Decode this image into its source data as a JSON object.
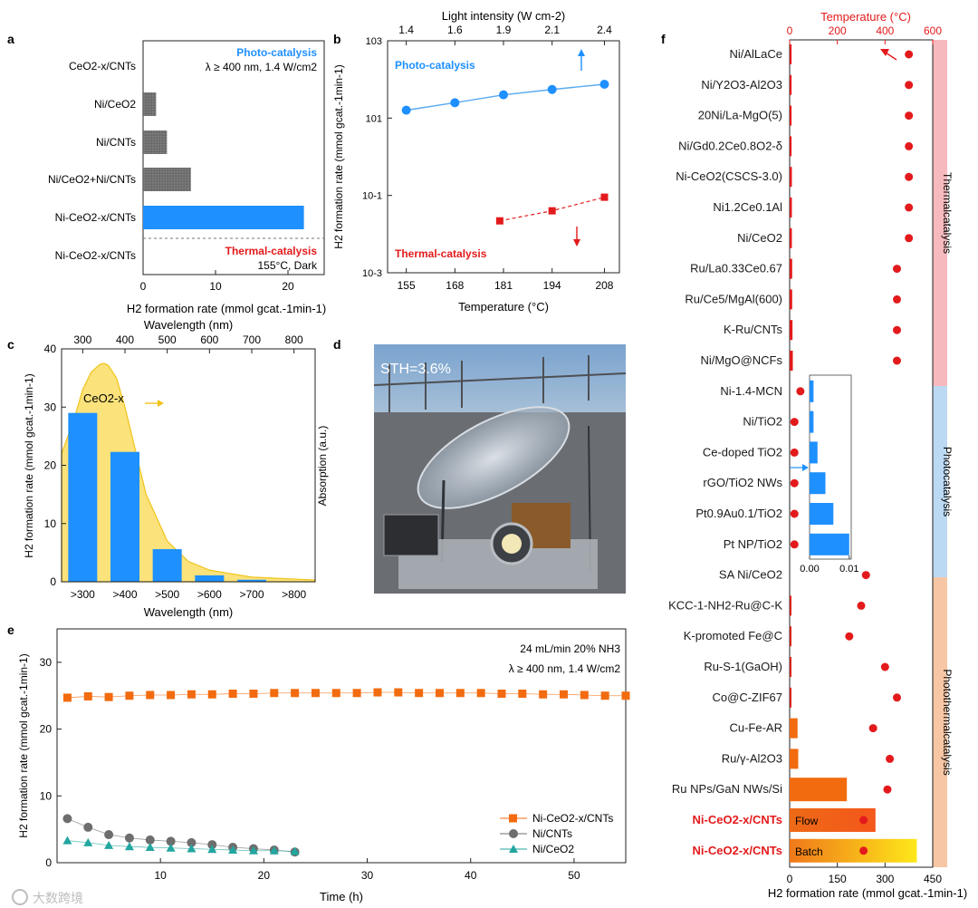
{
  "panel_labels": [
    "a",
    "b",
    "c",
    "d",
    "e",
    "f"
  ],
  "colors": {
    "photo": "#1e90ff",
    "thermal": "#e31a1c",
    "gray": "#6e6e6e",
    "orange": "#f26b0f",
    "teal": "#22a6a0",
    "yellow": "#fbe27b",
    "pink_band": "#f6b9be",
    "blue_band": "#bcd9f3",
    "peach_band": "#f7c6a4"
  },
  "panel_a": {
    "xlabel": "H2 formation rate (mmol gcat.-1min-1)",
    "photo_note": "Photo-catalysis",
    "photo_cond": "λ ≥ 400 nm, 1.4 W/cm2",
    "thermal_note": "Thermal-catalysis",
    "thermal_cond": "155°C, Dark",
    "ticks": [
      "0",
      "10",
      "20"
    ]
  },
  "panel_b": {
    "xlabel": "Temperature (°C)",
    "x2label": "Light intensity (W cm-2)",
    "ylabel": "H2 formation rate (mmol gcat.-1min-1)",
    "photo_note": "Photo-catalysis",
    "thermal_note": "Thermal-catalysis",
    "xticks": [
      "155",
      "168",
      "181",
      "194",
      "208"
    ],
    "x2ticks": [
      "1.4",
      "1.6",
      "1.9",
      "2.1",
      "2.4"
    ],
    "yticks": [
      "10-3",
      "10-1",
      "101",
      "103"
    ]
  },
  "panel_c": {
    "xlabel": "Wavelength (nm)",
    "x2label": "Wavelength (nm)",
    "ylabel": "H2 formation rate (mmol gcat.-1min-1)",
    "y2label": "Absorption (a.u.)",
    "series_label": "CeO2-x",
    "yticks": [
      "0",
      "10",
      "20",
      "30",
      "40"
    ],
    "x2ticks": [
      "300",
      "400",
      "500",
      "600",
      "700",
      "800"
    ]
  },
  "panel_d": {
    "sth_label": "STH=3.6%"
  },
  "panel_e": {
    "xlabel": "Time (h)",
    "ylabel": "H2 formation rate (mmol gcat.-1min-1)",
    "cond1": "24 mL/min  20% NH3",
    "cond2": "λ ≥ 400 nm, 1.4 W/cm2",
    "xticks": [
      "10",
      "20",
      "30",
      "40",
      "50"
    ],
    "yticks": [
      "0",
      "10",
      "20",
      "30"
    ]
  },
  "panel_f": {
    "xlabel": "H2 formation rate (mmol gcat.-1min-1)",
    "x2label": "Temperature (°C)",
    "xticks": [
      "0",
      "150",
      "300",
      "450"
    ],
    "x2ticks": [
      "0",
      "200",
      "400",
      "600"
    ],
    "inset_ticks": [
      "0.00",
      "0.01"
    ],
    "bands": [
      "Thermalcatalysis",
      "Photocatalysis",
      "Photothermalcatalysis"
    ],
    "flow_label": "Flow",
    "batch_label": "Batch"
  },
  "watermark": "大数跨境",
  "chart_data": [
    {
      "panel": "a",
      "type": "bar",
      "orientation": "horizontal",
      "categories": [
        "CeO2-x/CNTs",
        "Ni/CeO2",
        "Ni/CNTs",
        "Ni/CeO2+Ni/CNTs",
        "Ni-CeO2-x/CNTs",
        "Ni-CeO2-x/CNTs"
      ],
      "values": [
        0,
        1.8,
        3.3,
        6.6,
        22.2,
        0
      ],
      "xlabel": "H2 formation rate (mmol gcat.-1min-1)",
      "xlim": [
        0,
        25
      ]
    },
    {
      "panel": "b",
      "type": "line",
      "yscale": "log",
      "xlabel": "Temperature (°C)",
      "x2label": "Light intensity (W cm-2)",
      "ylabel": "H2 formation rate (mmol gcat.-1min-1)",
      "xlim": [
        150,
        212
      ],
      "ylim": [
        0.001,
        1000
      ],
      "series": [
        {
          "name": "Photo-catalysis",
          "x": [
            155,
            168,
            181,
            194,
            208
          ],
          "values": [
            16,
            25,
            40,
            55,
            75
          ]
        },
        {
          "name": "Thermal-catalysis",
          "x": [
            180,
            194,
            208
          ],
          "values": [
            0.022,
            0.04,
            0.09
          ]
        }
      ]
    },
    {
      "panel": "c",
      "type": "bar",
      "categories": [
        ">300",
        ">400",
        ">500",
        ">600",
        ">700",
        ">800"
      ],
      "values": [
        29,
        22.3,
        5.6,
        1.1,
        0.35,
        0
      ],
      "xlabel": "Wavelength (nm)",
      "ylabel": "H2 formation rate (mmol gcat.-1min-1)",
      "ylim": [
        0,
        40
      ],
      "absorption_curve": {
        "name": "CeO2-x",
        "x": [
          250,
          280,
          300,
          320,
          340,
          350,
          360,
          380,
          400,
          420,
          450,
          500,
          550,
          600,
          700,
          850
        ],
        "values": [
          22,
          28,
          33,
          36,
          37.3,
          37.5,
          37.2,
          35,
          30,
          24,
          15,
          7,
          3.5,
          2,
          0.8,
          0.3
        ]
      }
    },
    {
      "panel": "e",
      "type": "scatter",
      "xlabel": "Time (h)",
      "ylabel": "H2 formation rate (mmol gcat.-1min-1)",
      "xlim": [
        0,
        55
      ],
      "ylim": [
        0,
        35
      ],
      "series": [
        {
          "name": "Ni-CeO2-x/CNTs",
          "x": [
            1,
            3,
            5,
            7,
            9,
            11,
            13,
            15,
            17,
            19,
            21,
            23,
            25,
            27,
            29,
            31,
            33,
            35,
            37,
            39,
            41,
            43,
            45,
            47,
            49,
            51,
            53,
            55
          ],
          "values": [
            24.7,
            24.9,
            24.8,
            25.0,
            25.1,
            25.1,
            25.2,
            25.2,
            25.3,
            25.3,
            25.4,
            25.4,
            25.4,
            25.4,
            25.4,
            25.5,
            25.5,
            25.4,
            25.4,
            25.4,
            25.4,
            25.3,
            25.3,
            25.2,
            25.2,
            25.1,
            25.0,
            25.0
          ]
        },
        {
          "name": "Ni/CNTs",
          "x": [
            1,
            3,
            5,
            7,
            9,
            11,
            13,
            15,
            17,
            19,
            21,
            23
          ],
          "values": [
            6.6,
            5.3,
            4.2,
            3.7,
            3.4,
            3.2,
            3.0,
            2.7,
            2.3,
            2.1,
            1.9,
            1.6
          ]
        },
        {
          "name": "Ni/CeO2",
          "x": [
            1,
            3,
            5,
            7,
            9,
            11,
            13,
            15,
            17,
            19,
            21,
            23
          ],
          "values": [
            3.3,
            3.0,
            2.6,
            2.4,
            2.3,
            2.2,
            2.1,
            2.0,
            1.9,
            1.8,
            1.8,
            1.7
          ]
        }
      ]
    },
    {
      "panel": "f",
      "type": "bar",
      "orientation": "horizontal",
      "xlabel": "H2 formation rate (mmol gcat.-1min-1)",
      "x2label": "Temperature (°C)",
      "xlim": [
        0,
        450
      ],
      "x2lim": [
        0,
        600
      ],
      "categories": [
        "Ni/AlLaCe",
        "Ni/Y2O3-Al2O3",
        "20Ni/La-MgO(5)",
        "Ni/Gd0.2Ce0.8O2-δ",
        "Ni-CeO2(CSCS-3.0)",
        "Ni1.2Ce0.1Al",
        "Ni/CeO2",
        "Ru/La0.33Ce0.67",
        "Ru/Ce5/MgAl(600)",
        "K-Ru/CNTs",
        "Ni/MgO@NCFs",
        "Ni-1.4-MCN",
        "Ni/TiO2",
        "Ce-doped TiO2",
        "rGO/TiO2 NWs",
        "Pt0.9Au0.1/TiO2",
        "Pt NP/TiO2",
        "SA Ni/CeO2",
        "KCC-1-NH2-Ru@C-K",
        "K-promoted Fe@C",
        "Ru-S-1(GaOH)",
        "Co@C-ZIF67",
        "Cu-Fe-AR",
        "Ru/γ-Al2O3",
        "Ru NPs/GaN NWs/Si",
        "Ni-CeO2-x/CNTs",
        "Ni-CeO2-x/CNTs"
      ],
      "values": [
        6,
        6,
        6,
        6,
        7,
        7,
        7,
        8,
        8,
        9,
        10,
        0,
        0,
        0,
        0,
        0,
        0,
        0,
        1,
        1,
        2,
        3,
        25,
        27,
        180,
        270,
        400
      ],
      "inset_values": [
        0.001,
        0.001,
        0.002,
        0.004,
        0.006,
        0.01
      ],
      "temperatures": [
        500,
        500,
        500,
        500,
        500,
        500,
        500,
        450,
        450,
        450,
        450,
        45,
        20,
        20,
        20,
        20,
        20,
        320,
        300,
        250,
        400,
        450,
        350,
        420,
        410,
        310,
        310
      ]
    }
  ]
}
